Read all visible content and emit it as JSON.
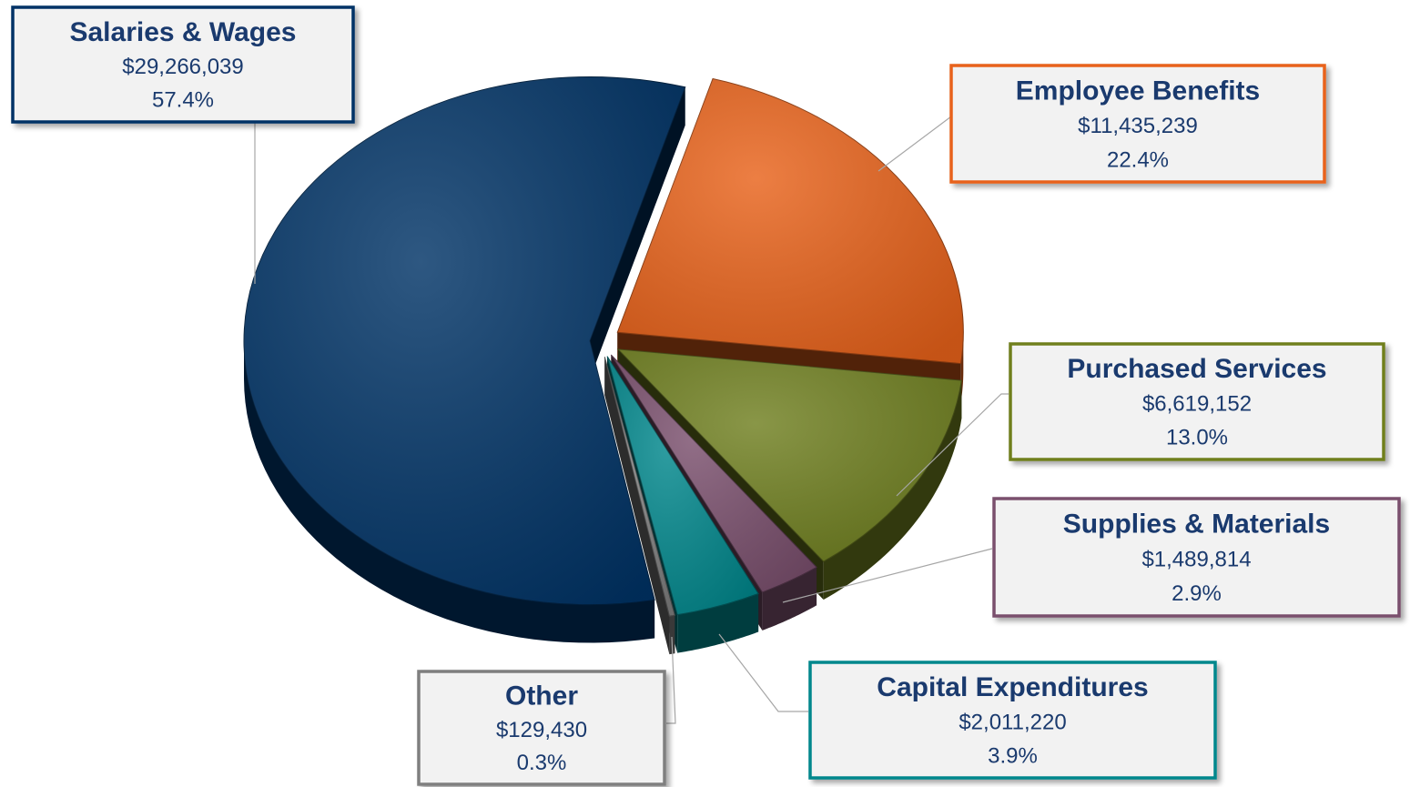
{
  "chart_data": {
    "type": "pie",
    "categories": [
      "Employee Benefits",
      "Purchased Services",
      "Supplies & Materials",
      "Capital Expenditures",
      "Other",
      "Salaries & Wages"
    ],
    "values": [
      11435239,
      6619152,
      1489814,
      2011220,
      129430,
      29266039
    ],
    "value_labels": [
      "$11,435,239",
      "$6,619,152",
      "$1,489,814",
      "$2,011,220",
      "$129,430",
      "$29,266,039"
    ],
    "percent_labels": [
      "22.4%",
      "13.0%",
      "2.9%",
      "3.9%",
      "0.3%",
      "57.4%"
    ],
    "colors": [
      "#e8621a",
      "#6f7f1f",
      "#7a4f6d",
      "#00878c",
      "#7f7f7f",
      "#003366"
    ]
  }
}
